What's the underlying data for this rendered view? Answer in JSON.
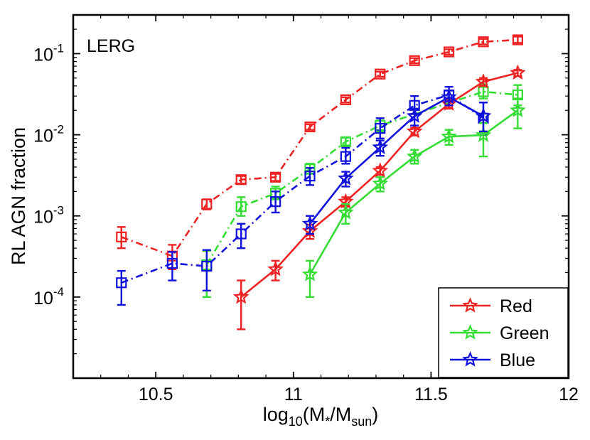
{
  "chart_data": {
    "type": "line",
    "title": "",
    "panel_label": "LERG",
    "xlabel": {
      "base": "log",
      "sub1": "10",
      "mid": "(M",
      "sub2": "*",
      "mid2": "/M",
      "sub3": "sun",
      "end": ")"
    },
    "ylabel": "RL AGN fraction",
    "xscale": "linear",
    "yscale": "log",
    "xlim": [
      10.2,
      12.0
    ],
    "ylim": [
      1e-05,
      0.3
    ],
    "xticks": [
      10.5,
      11,
      11.5,
      12
    ],
    "xtick_labels": [
      "10.5",
      "11",
      "11.5",
      "12"
    ],
    "yticks": [
      0.0001,
      0.001,
      0.01,
      0.1
    ],
    "ytick_labels": [
      {
        "base": "10",
        "exp": "-4"
      },
      {
        "base": "10",
        "exp": "-3"
      },
      {
        "base": "10",
        "exp": "-2"
      },
      {
        "base": "10",
        "exp": "-1"
      }
    ],
    "legend": {
      "position": "bottom-right",
      "entries": [
        "Red",
        "Green",
        "Blue"
      ]
    },
    "series": [
      {
        "name": "Red (all, dash-dot)",
        "color": "#ee2222",
        "marker": "square",
        "linestyle": "dashdot",
        "x": [
          10.375,
          10.56,
          10.685,
          10.81,
          10.935,
          11.06,
          11.19,
          11.315,
          11.44,
          11.565,
          11.69,
          11.815
        ],
        "y": [
          0.00055,
          0.00032,
          0.0014,
          0.0028,
          0.003,
          0.0125,
          0.027,
          0.056,
          0.082,
          0.105,
          0.14,
          0.148
        ],
        "err_lo": [
          0.00015,
          0.0001,
          0.0002,
          0.0003,
          0.0003,
          0.001,
          0.002,
          0.004,
          0.006,
          0.008,
          0.01,
          0.012
        ],
        "err_hi": [
          0.00018,
          0.00012,
          0.0002,
          0.0003,
          0.0003,
          0.001,
          0.002,
          0.004,
          0.006,
          0.008,
          0.012,
          0.014
        ]
      },
      {
        "name": "Green (all, dash-dot)",
        "color": "#33dd33",
        "marker": "square",
        "linestyle": "dashdot",
        "x": [
          10.685,
          10.81,
          10.935,
          11.06,
          11.19,
          11.315,
          11.69,
          11.815
        ],
        "y": [
          0.00025,
          0.0013,
          0.0019,
          0.0038,
          0.0082,
          0.013,
          0.034,
          0.031
        ],
        "err_lo": [
          0.00015,
          0.0003,
          0.0003,
          0.0005,
          0.0008,
          0.002,
          0.006,
          0.008
        ],
        "err_hi": [
          0.00012,
          0.0004,
          0.0004,
          0.0006,
          0.001,
          0.002,
          0.008,
          0.01
        ]
      },
      {
        "name": "Blue (all, dash-dot)",
        "color": "#1111dd",
        "marker": "square",
        "linestyle": "dashdot",
        "x": [
          10.375,
          10.56,
          10.685,
          10.81,
          10.935,
          11.06,
          11.19,
          11.315,
          11.44,
          11.565,
          11.69
        ],
        "y": [
          0.00015,
          0.00026,
          0.00024,
          0.0006,
          0.0015,
          0.0031,
          0.0054,
          0.012,
          0.023,
          0.031,
          0.016
        ],
        "err_lo": [
          7e-05,
          0.0001,
          0.00012,
          0.0002,
          0.0004,
          0.0007,
          0.001,
          0.003,
          0.005,
          0.008,
          0.006
        ],
        "err_hi": [
          6e-05,
          0.0001,
          0.00014,
          0.0002,
          0.0005,
          0.0008,
          0.0015,
          0.004,
          0.007,
          0.008,
          0.009
        ]
      },
      {
        "name": "Red",
        "color": "#ee2222",
        "marker": "star",
        "linestyle": "solid",
        "x": [
          10.81,
          10.935,
          11.06,
          11.19,
          11.315,
          11.44,
          11.565,
          11.69,
          11.815
        ],
        "y": [
          0.0001,
          0.00022,
          0.00065,
          0.0015,
          0.0036,
          0.011,
          0.024,
          0.045,
          0.058
        ],
        "err_lo": [
          6e-05,
          6e-05,
          0.00013,
          0.0002,
          0.0004,
          0.0012,
          0.003,
          0.005,
          0.005
        ],
        "err_hi": [
          6e-05,
          6e-05,
          0.00013,
          0.0002,
          0.0004,
          0.0012,
          0.003,
          0.005,
          0.005
        ]
      },
      {
        "name": "Green",
        "color": "#33dd33",
        "marker": "star",
        "linestyle": "solid",
        "x": [
          11.06,
          11.19,
          11.315,
          11.44,
          11.565,
          11.69,
          11.815
        ],
        "y": [
          0.00019,
          0.0011,
          0.0025,
          0.0054,
          0.0095,
          0.0099,
          0.02
        ],
        "err_lo": [
          9e-05,
          0.0003,
          0.0005,
          0.001,
          0.002,
          0.0045,
          0.008
        ],
        "err_hi": [
          9e-05,
          0.0003,
          0.0005,
          0.0011,
          0.002,
          0.004,
          0.008
        ]
      },
      {
        "name": "Blue",
        "color": "#1111dd",
        "marker": "star",
        "linestyle": "solid",
        "x": [
          11.06,
          11.19,
          11.315,
          11.44,
          11.565,
          11.69
        ],
        "y": [
          0.0008,
          0.0029,
          0.007,
          0.017,
          0.029,
          0.017
        ],
        "err_lo": [
          0.0002,
          0.0006,
          0.0015,
          0.004,
          0.006,
          0.006
        ],
        "err_hi": [
          0.0002,
          0.0006,
          0.0015,
          0.004,
          0.006,
          0.008
        ]
      }
    ]
  }
}
